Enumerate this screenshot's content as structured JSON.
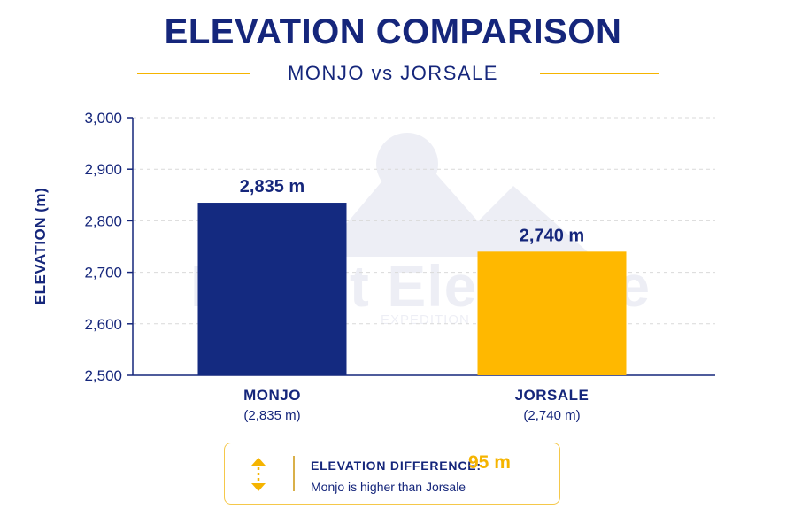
{
  "chart_data": {
    "type": "bar",
    "title": "ELEVATION COMPARISON",
    "subtitle": "MONJO vs JORSALE",
    "ylabel": "ELEVATION (m)",
    "xlabel": "",
    "ylim": [
      2500,
      3000
    ],
    "yticks": [
      2500,
      2600,
      2700,
      2800,
      2900,
      3000
    ],
    "ytick_labels": [
      "2,500",
      "2,600",
      "2,700",
      "2,800",
      "2,900",
      "3,000"
    ],
    "grid": true,
    "categories": [
      "MONJO",
      "JORSALE"
    ],
    "category_sublabels": [
      "(2,835 m)",
      "(2,740 m)"
    ],
    "values": [
      2835,
      2740
    ],
    "data_labels": [
      "2,835 m",
      "2,740 m"
    ],
    "colors": [
      "#142a80",
      "#ffb800"
    ]
  },
  "watermark": {
    "text": "Mount Elegance",
    "subtext": "EXPEDITION"
  },
  "difference": {
    "label": "ELEVATION DIFFERENCE:",
    "value": "95 m",
    "note": "Monjo is higher than Jorsale",
    "icon": "up-down-arrow-icon"
  },
  "colors": {
    "navy": "#15267b",
    "gold": "#f5b400",
    "grid": "#d9d9d9"
  }
}
